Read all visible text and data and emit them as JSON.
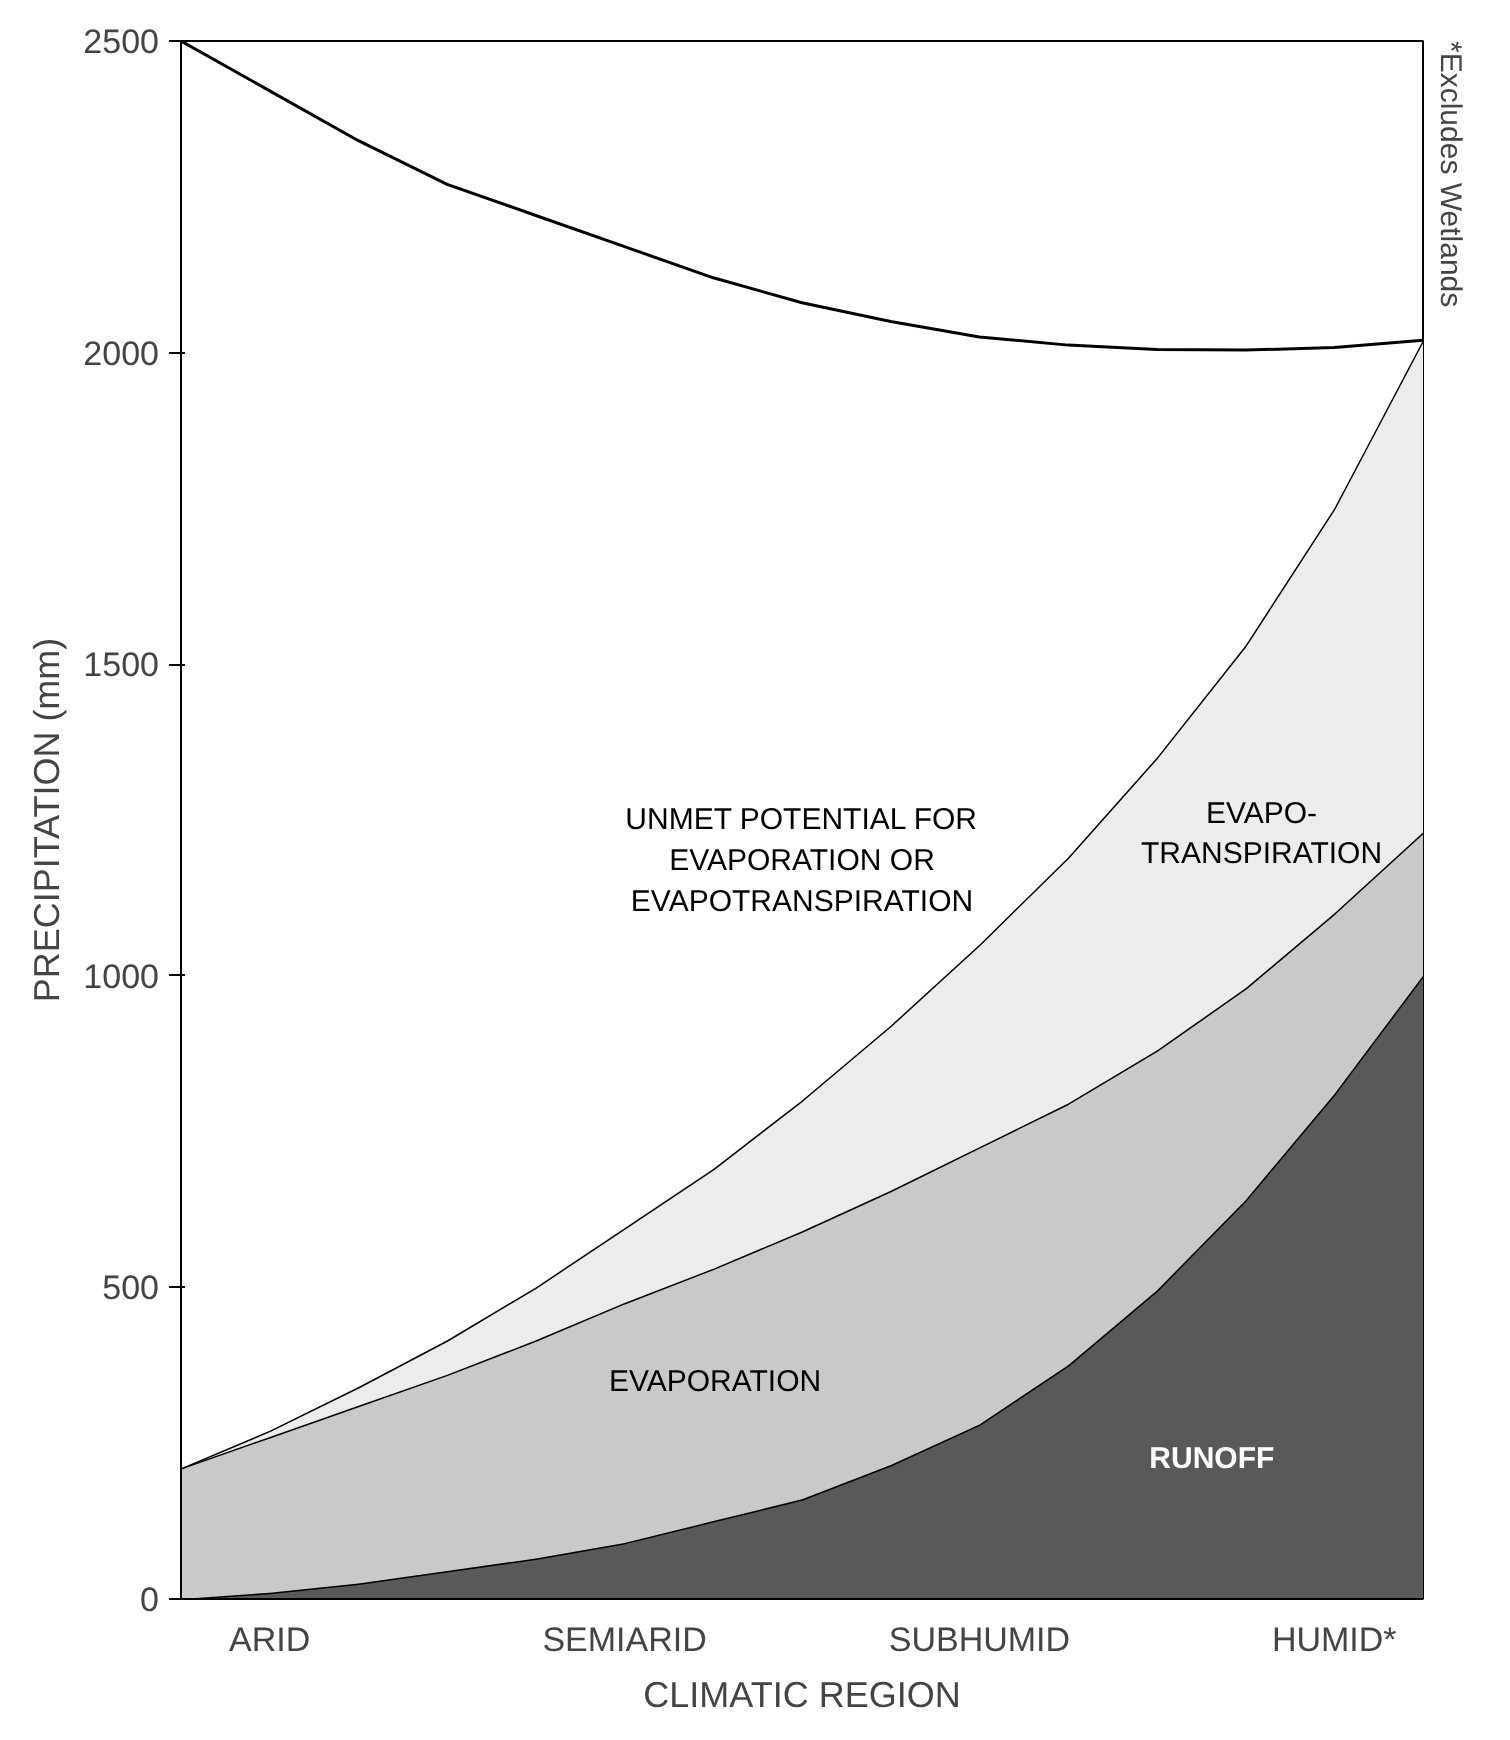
{
  "chart_data": {
    "type": "area",
    "stacked": true,
    "xlabel": "CLIMATIC REGION",
    "ylabel": "PRECIPITATION (mm)",
    "categories": [
      null,
      "ARID",
      null,
      null,
      null,
      "SEMIARID",
      null,
      null,
      null,
      "SUBHUMID",
      null,
      null,
      null,
      "HUMID*",
      null
    ],
    "ylim": [
      0,
      2500
    ],
    "yticks": [
      0,
      500,
      1000,
      1500,
      2000,
      2500
    ],
    "grid": false,
    "series": [
      {
        "name": "RUNOFF",
        "color": "#595959",
        "values": [
          0,
          10,
          25,
          45,
          65,
          90,
          125,
          160,
          215,
          280,
          375,
          495,
          640,
          810,
          1000
        ]
      },
      {
        "name": "EVAPORATION",
        "color": "#c9c9c9",
        "values": [
          210,
          250,
          285,
          315,
          350,
          385,
          405,
          430,
          440,
          445,
          420,
          385,
          340,
          290,
          230
        ]
      },
      {
        "name": "EVAPO-\nTRANSPIRATION",
        "color": "#ececec",
        "values": [
          0,
          10,
          30,
          55,
          85,
          120,
          160,
          210,
          265,
          325,
          395,
          470,
          550,
          650,
          790
        ]
      },
      {
        "name": "UNMET POTENTIAL FOR\nEVAPORATION OR\nEVAPOTRANSPIRATION",
        "color": "#ffffff",
        "values": [
          2290,
          2150,
          2000,
          1855,
          1720,
          1575,
          1430,
          1280,
          1130,
          975,
          822,
          655,
          474,
          258,
          0
        ]
      }
    ],
    "annotations": [
      "*Excludes Wetlands"
    ]
  }
}
